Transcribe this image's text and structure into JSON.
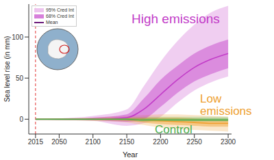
{
  "chart_data": {
    "type": "line",
    "x_label": "Year",
    "y_label": "Sea level rise (in mm)",
    "x": [
      2015,
      2050,
      2100,
      2150,
      2175,
      2200,
      2225,
      2250,
      2275,
      2300
    ],
    "xlim": [
      2005,
      2305
    ],
    "xticks": [
      2015,
      2050,
      2100,
      2150,
      2200,
      2250,
      2300
    ],
    "ylim": [
      -18,
      140
    ],
    "yticks": [
      0,
      50,
      100
    ],
    "legend": "upper left",
    "legend_entries": [
      "95% Cred Int",
      "68% Cred Int",
      "Mean"
    ],
    "reference_line": {
      "x": 2015,
      "color": "#e03030",
      "line_style": "dashed"
    },
    "series": [
      {
        "name": "High emissions",
        "color": "#c23cc8",
        "values": [
          0,
          0,
          0,
          2,
          12,
          30,
          48,
          63,
          73,
          80
        ],
        "ci68_lower": [
          0,
          0,
          -1,
          -3,
          0,
          15,
          32,
          46,
          55,
          62
        ],
        "ci68_upper": [
          0,
          0,
          2,
          6,
          25,
          48,
          65,
          80,
          90,
          97
        ],
        "ci95_lower": [
          0,
          -1,
          -2,
          -8,
          -5,
          3,
          20,
          35,
          45,
          52
        ],
        "ci95_upper": [
          0,
          1,
          4,
          12,
          40,
          70,
          95,
          115,
          130,
          138
        ]
      },
      {
        "name": "Low emissions",
        "color": "#eea030",
        "values": [
          0,
          0,
          0,
          0,
          -1,
          -2,
          -3,
          -4,
          -5,
          -5
        ],
        "ci68_lower": [
          0,
          0,
          -1,
          -2,
          -4,
          -6,
          -7,
          -8,
          -9,
          -9
        ],
        "ci68_upper": [
          0,
          0,
          1,
          2,
          2,
          2,
          2,
          1,
          0,
          0
        ],
        "ci95_lower": [
          0,
          -1,
          -2,
          -4,
          -7,
          -10,
          -12,
          -13,
          -14,
          -15
        ],
        "ci95_upper": [
          0,
          1,
          2,
          4,
          5,
          6,
          6,
          5,
          4,
          3
        ]
      },
      {
        "name": "Control",
        "color": "#4caf50",
        "values": [
          0,
          0,
          0,
          0,
          -1,
          -1,
          -1,
          -1,
          -1,
          -1
        ],
        "ci68_lower": [
          0,
          0,
          0,
          -1,
          -2,
          -2,
          -2,
          -2,
          -2,
          -2
        ],
        "ci68_upper": [
          0,
          0,
          0,
          1,
          1,
          1,
          1,
          1,
          1,
          1
        ],
        "ci95_lower": [
          0,
          -1,
          -1,
          -2,
          -3,
          -3,
          -3,
          -3,
          -3,
          -3
        ],
        "ci95_upper": [
          0,
          1,
          1,
          2,
          3,
          3,
          3,
          3,
          3,
          3
        ]
      }
    ]
  }
}
